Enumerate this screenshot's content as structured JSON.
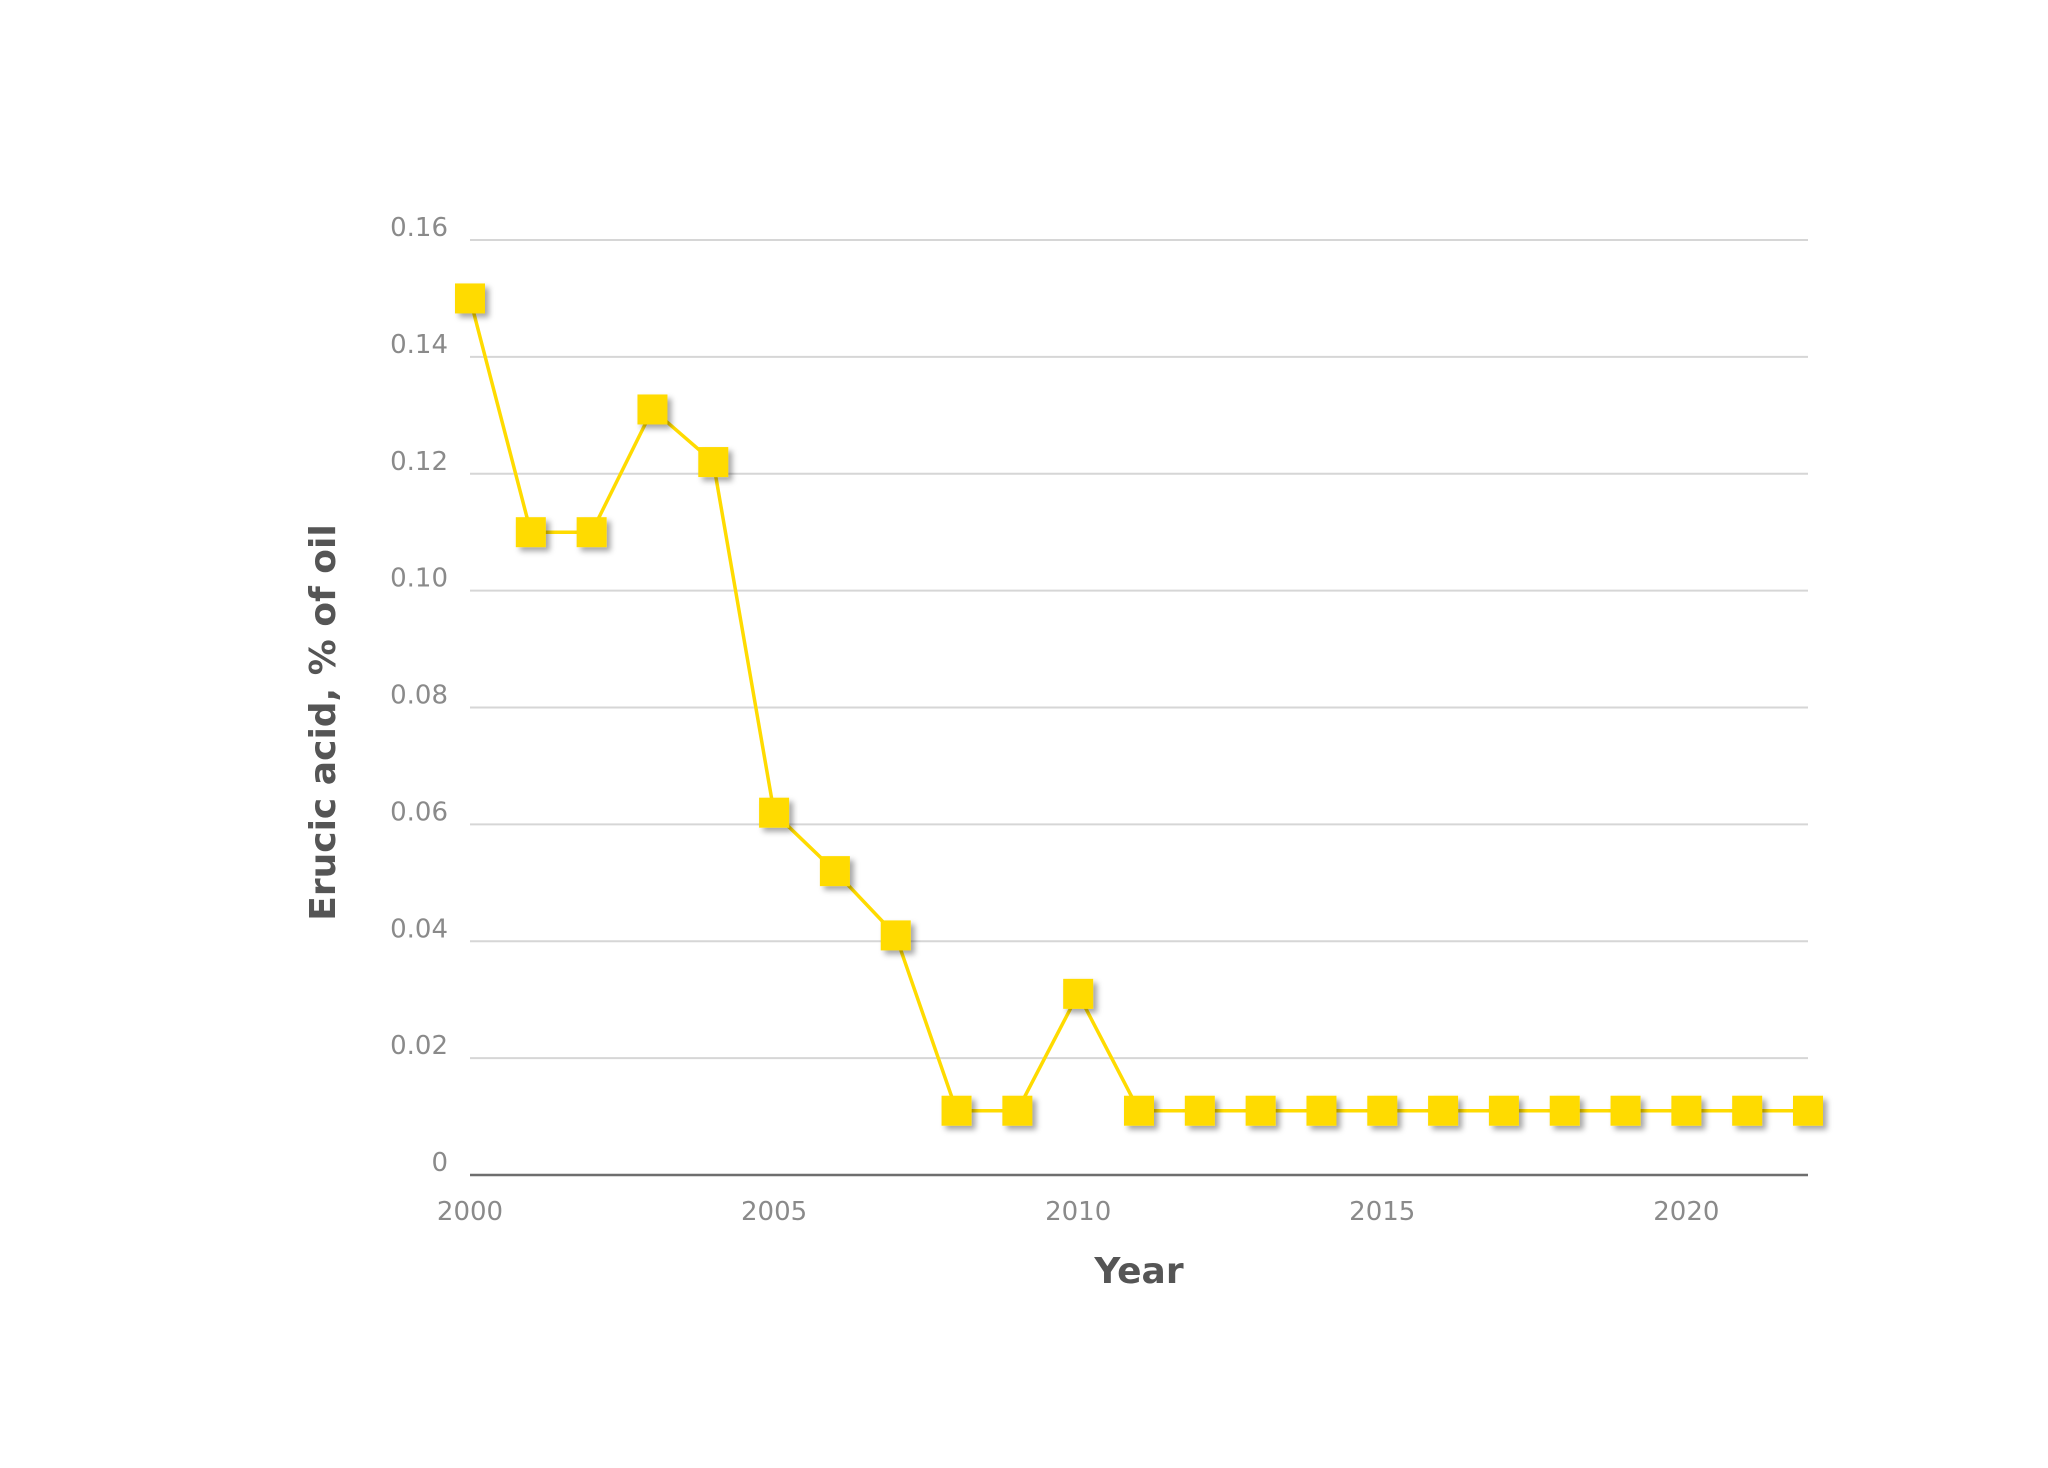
{
  "chart_data": {
    "type": "line",
    "title": "",
    "xlabel": "Year",
    "ylabel": "Erucic acid, % of oil",
    "xlim": [
      2000,
      2022
    ],
    "ylim": [
      0,
      0.16
    ],
    "x_ticks": [
      "2000",
      "2005",
      "2010",
      "2015",
      "2020"
    ],
    "y_ticks": [
      "0",
      "0.02",
      "0.04",
      "0.06",
      "0.08",
      "0.10",
      "0.12",
      "0.14",
      "0.16"
    ],
    "grid": true,
    "legend": "none",
    "marker": "square",
    "color": "#FFDB00",
    "x": [
      2000,
      2001,
      2002,
      2003,
      2004,
      2005,
      2006,
      2007,
      2008,
      2009,
      2010,
      2011,
      2012,
      2013,
      2014,
      2015,
      2016,
      2017,
      2018,
      2019,
      2020,
      2021,
      2022
    ],
    "series": [
      {
        "values": [
          0.15,
          0.11,
          0.11,
          0.131,
          0.122,
          0.062,
          0.052,
          0.041,
          0.011,
          0.011,
          0.031,
          0.011,
          0.011,
          0.011,
          0.011,
          0.011,
          0.011,
          0.011,
          0.011,
          0.011,
          0.011,
          0.011,
          0.011
        ]
      }
    ]
  }
}
